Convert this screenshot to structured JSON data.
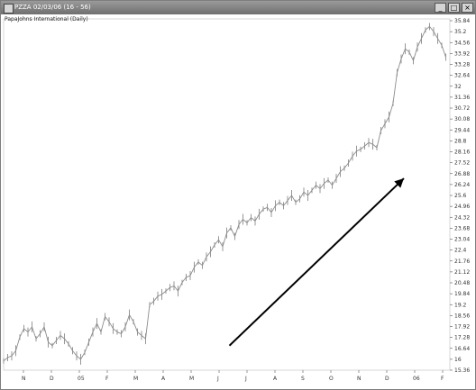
{
  "window": {
    "title": "PZZA 02/03/06 (16 - 56)",
    "buttons": {
      "minimize": "_",
      "maximize": "□",
      "close": "×"
    }
  },
  "chart_data": {
    "type": "line",
    "title": "PapaJohns International (Daily)",
    "ylim": [
      15.36,
      35.84
    ],
    "y_ticks": [
      "35.84",
      "35.2",
      "34.56",
      "33.92",
      "33.28",
      "32.64",
      "32",
      "31.36",
      "30.72",
      "30.08",
      "29.44",
      "28.8",
      "28.16",
      "27.52",
      "26.88",
      "26.24",
      "25.6",
      "24.96",
      "24.32",
      "23.68",
      "23.04",
      "22.4",
      "21.76",
      "21.12",
      "20.48",
      "19.84",
      "19.2",
      "18.56",
      "17.92",
      "17.28",
      "16.64",
      "16",
      "15.36"
    ],
    "x_ticks": [
      "N",
      "D",
      "05",
      "F",
      "M",
      "A",
      "M",
      "J",
      "J",
      "A",
      "S",
      "O",
      "N",
      "D",
      "06",
      "F"
    ],
    "series": [
      {
        "color": "#8c8c8c",
        "x": [
          0,
          3,
          6,
          9,
          12,
          15,
          18,
          21,
          24,
          27,
          30,
          33,
          36,
          39,
          42,
          45,
          48,
          51,
          54,
          57,
          60,
          63,
          66,
          69,
          72,
          75,
          78,
          81,
          84,
          87,
          90,
          93,
          96,
          99,
          102,
          105,
          108,
          111,
          114,
          117,
          120,
          123,
          126,
          129,
          132,
          135,
          138,
          141,
          144,
          147,
          150,
          153,
          156,
          159,
          162,
          165,
          168,
          171,
          174,
          177,
          180,
          183,
          186,
          189,
          192,
          195,
          198,
          201,
          204,
          207,
          210,
          213,
          216,
          219,
          222,
          225,
          228,
          231,
          234,
          237,
          240,
          243,
          246,
          249,
          252,
          255,
          258,
          261,
          264,
          267,
          270,
          273,
          276,
          279,
          282,
          285,
          288,
          291,
          294,
          297,
          300,
          303,
          306,
          309,
          312,
          315,
          318,
          321,
          324,
          327
        ],
        "y": [
          15.9,
          16.1,
          16.2,
          16.5,
          17.3,
          17.8,
          17.6,
          17.9,
          17.2,
          17.5,
          17.9,
          17.0,
          16.8,
          17.1,
          17.4,
          17.2,
          16.9,
          16.5,
          16.2,
          16.0,
          16.4,
          17.0,
          17.6,
          18.1,
          17.6,
          18.5,
          18.2,
          17.8,
          17.6,
          17.5,
          17.9,
          18.6,
          18.2,
          17.6,
          17.4,
          17.2,
          19.2,
          19.4,
          19.7,
          19.8,
          20.0,
          20.2,
          20.3,
          20.0,
          20.5,
          20.8,
          20.9,
          21.4,
          21.7,
          21.5,
          22.0,
          22.3,
          22.7,
          23.0,
          22.6,
          23.4,
          23.7,
          23.2,
          23.9,
          24.2,
          24.0,
          24.3,
          24.1,
          24.5,
          24.8,
          24.9,
          24.6,
          25.0,
          25.2,
          25.0,
          25.3,
          25.6,
          25.2,
          25.4,
          25.8,
          25.6,
          25.9,
          26.2,
          26.0,
          26.3,
          26.5,
          26.2,
          26.6,
          27.0,
          27.2,
          27.5,
          27.9,
          28.2,
          28.3,
          28.5,
          28.7,
          28.6,
          28.4,
          29.4,
          29.8,
          30.2,
          31.0,
          32.8,
          33.6,
          34.2,
          34.0,
          33.5,
          34.3,
          34.8,
          35.3,
          35.5,
          35.2,
          34.8,
          34.4,
          33.7
        ]
      }
    ],
    "annotations": [
      {
        "type": "arrow",
        "from": [
          167,
          16.8
        ],
        "to": [
          296,
          26.6
        ]
      }
    ]
  }
}
